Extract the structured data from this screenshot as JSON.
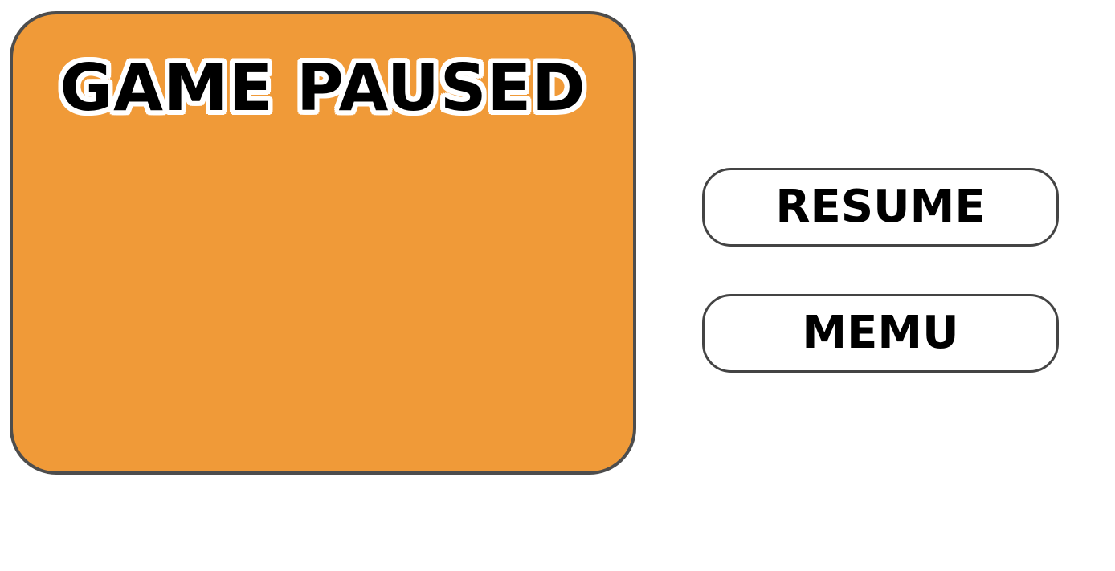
{
  "pause_screen": {
    "title": "GAME PAUSED",
    "buttons": {
      "resume_label": "RESUME",
      "menu_label": "MEMU"
    }
  },
  "colors": {
    "panel_background": "#F09A38",
    "panel_border": "#4D4D4D",
    "button_background": "#FFFFFF",
    "text": "#000000"
  }
}
